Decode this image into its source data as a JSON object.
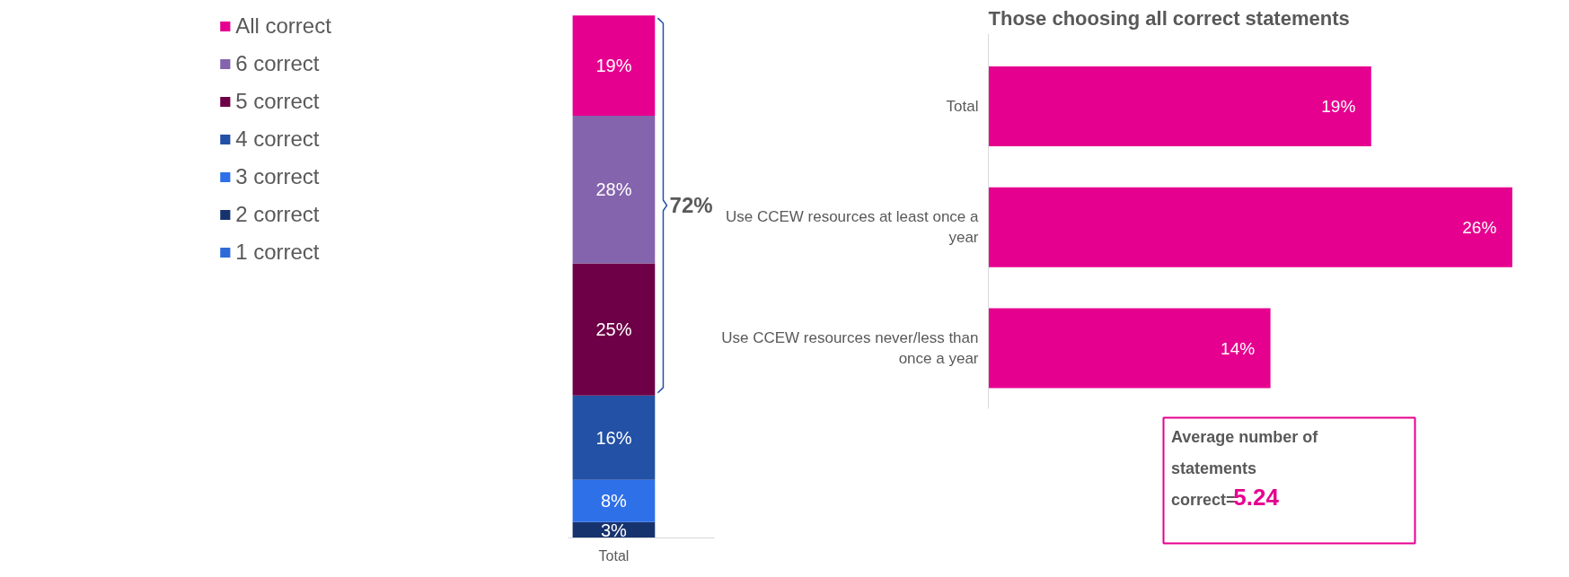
{
  "chart_data": [
    {
      "type": "bar",
      "stacked": true,
      "categories": [
        "Total"
      ],
      "legend": "left",
      "series": [
        {
          "name": "1 correct",
          "color": "#2e6bd8",
          "values": [
            0
          ],
          "value_labels": [
            null
          ]
        },
        {
          "name": "2 correct",
          "color": "#17336e",
          "values": [
            3
          ],
          "value_labels": [
            "3%"
          ]
        },
        {
          "name": "3 correct",
          "color": "#2e70e8",
          "values": [
            8
          ],
          "value_labels": [
            "8%"
          ]
        },
        {
          "name": "4 correct",
          "color": "#2251a5",
          "values": [
            16
          ],
          "value_labels": [
            "16%"
          ]
        },
        {
          "name": "5 correct",
          "color": "#6d0046",
          "values": [
            25
          ],
          "value_labels": [
            "25%"
          ]
        },
        {
          "name": "6 correct",
          "color": "#8464ac",
          "values": [
            28
          ],
          "value_labels": [
            "28%"
          ]
        },
        {
          "name": "All correct",
          "color": "#e6008f",
          "values": [
            19
          ],
          "value_labels": [
            "19%"
          ]
        }
      ],
      "annotations": [
        "72%"
      ]
    },
    {
      "type": "bar",
      "orientation": "horizontal",
      "title": "Those choosing all correct statements",
      "categories": [
        "Total",
        "Use CCEW resources at least once a year",
        "Use CCEW resources never/less than once a year"
      ],
      "values": [
        19,
        26,
        14
      ],
      "value_labels": [
        "19%",
        "26%",
        "14%"
      ],
      "color": "#e6008f"
    },
    {
      "type": "other",
      "title": "Average number of statements correct=",
      "values": [
        5.24
      ],
      "color": "#e6008f",
      "data_labels": true
    }
  ]
}
